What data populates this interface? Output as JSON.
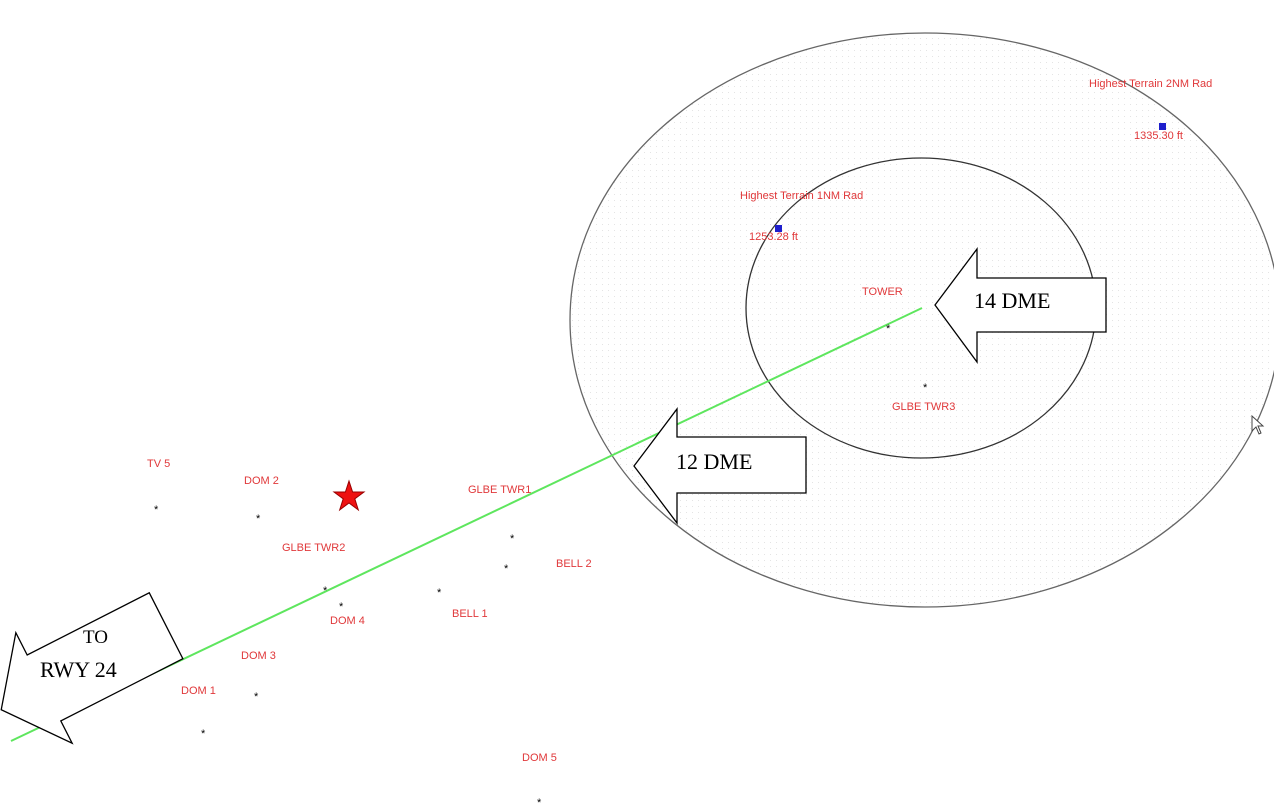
{
  "colors": {
    "label": "#e0383a",
    "course_line": "#5ee65e",
    "terrain_marker": "#1f1fcc",
    "ring": "#555555",
    "star": "#ee1111"
  },
  "terrain": {
    "inner": {
      "title": "Highest Terrain 1NM Rad",
      "elevation": "1253.28 ft"
    },
    "outer": {
      "title": "Highest Terrain 2NM Rad",
      "elevation": "1335.30 ft"
    }
  },
  "obstacles": [
    {
      "id": "tv5",
      "label": "TV 5"
    },
    {
      "id": "dom2",
      "label": "DOM 2"
    },
    {
      "id": "glbe-twr2",
      "label": "GLBE TWR2"
    },
    {
      "id": "glbe-twr1",
      "label": "GLBE TWR1"
    },
    {
      "id": "bell2",
      "label": "BELL 2"
    },
    {
      "id": "bell1",
      "label": "BELL 1"
    },
    {
      "id": "dom4",
      "label": "DOM 4"
    },
    {
      "id": "dom3",
      "label": "DOM 3"
    },
    {
      "id": "dom1",
      "label": "DOM 1"
    },
    {
      "id": "dom5",
      "label": "DOM 5"
    },
    {
      "id": "tower",
      "label": "TOWER"
    },
    {
      "id": "glbe-twr3",
      "label": "GLBE TWR3"
    }
  ],
  "callouts": {
    "dme14": "14 DME",
    "dme12": "12 DME",
    "runway_line1": "TO",
    "runway_line2": "RWY 24"
  },
  "icons": {
    "star": "star-icon",
    "obstacle": "asterisk-obstacle-icon",
    "terrain": "square-terrain-icon",
    "cursor": "mouse-pointer-icon"
  }
}
